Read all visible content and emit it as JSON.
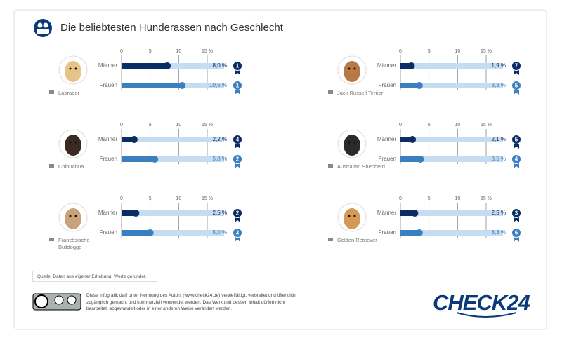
{
  "header": {
    "title": "Die beliebtesten Hunderassen nach Geschlecht"
  },
  "chart_data": [
    {
      "type": "bar",
      "title": "Labrador",
      "categories": [
        "Männer",
        "Frauen"
      ],
      "values": [
        8.0,
        10.6
      ],
      "value_labels": [
        "8,0 %",
        "10,6 %"
      ],
      "ranks": [
        1,
        1
      ],
      "colors": [
        "#0b2d66",
        "#3b7fc0"
      ],
      "xlim": [
        0,
        15
      ],
      "xticks": [
        0,
        5,
        10,
        {
          "value": 15,
          "label": "15 %"
        }
      ]
    },
    {
      "type": "bar",
      "title": "Jack Russell Terrier",
      "categories": [
        "Männer",
        "Frauen"
      ],
      "values": [
        1.9,
        3.3
      ],
      "value_labels": [
        "1,9 %",
        "3,3 %"
      ],
      "ranks": [
        7,
        5
      ],
      "colors": [
        "#0b2d66",
        "#3b7fc0"
      ],
      "xlim": [
        0,
        15
      ],
      "xticks": [
        0,
        5,
        10,
        {
          "value": 15,
          "label": "15 %"
        }
      ]
    },
    {
      "type": "bar",
      "title": "Chihuahua",
      "categories": [
        "Männer",
        "Frauen"
      ],
      "values": [
        2.2,
        5.8
      ],
      "value_labels": [
        "2,2 %",
        "5,8 %"
      ],
      "ranks": [
        4,
        2
      ],
      "colors": [
        "#0b2d66",
        "#3b7fc0"
      ],
      "xlim": [
        0,
        15
      ],
      "xticks": [
        0,
        5,
        10,
        {
          "value": 15,
          "label": "15 %"
        }
      ]
    },
    {
      "type": "bar",
      "title": "Australian Shepherd",
      "categories": [
        "Männer",
        "Frauen"
      ],
      "values": [
        2.1,
        3.5
      ],
      "value_labels": [
        "2,1 %",
        "3,5 %"
      ],
      "ranks": [
        5,
        4
      ],
      "colors": [
        "#0b2d66",
        "#3b7fc0"
      ],
      "xlim": [
        0,
        15
      ],
      "xticks": [
        0,
        5,
        10,
        {
          "value": 15,
          "label": "15 %"
        }
      ]
    },
    {
      "type": "bar",
      "title": "Französische Bulldogge",
      "categories": [
        "Männer",
        "Frauen"
      ],
      "values": [
        2.5,
        5.0
      ],
      "value_labels": [
        "2,5 %",
        "5,0 %"
      ],
      "ranks": [
        2,
        3
      ],
      "colors": [
        "#0b2d66",
        "#3b7fc0"
      ],
      "xlim": [
        0,
        15
      ],
      "xticks": [
        0,
        5,
        10,
        {
          "value": 15,
          "label": "15 %"
        }
      ]
    },
    {
      "type": "bar",
      "title": "Golden Retriever",
      "categories": [
        "Männer",
        "Frauen"
      ],
      "values": [
        2.5,
        3.3
      ],
      "value_labels": [
        "2,5 %",
        "3,3 %"
      ],
      "ranks": [
        3,
        6
      ],
      "colors": [
        "#0b2d66",
        "#3b7fc0"
      ],
      "xlim": [
        0,
        15
      ],
      "xticks": [
        0,
        5,
        10,
        {
          "value": 15,
          "label": "15 %"
        }
      ]
    }
  ],
  "footer": {
    "source": "Quelle: Daten aus eigener Erhebung. Werte gerundet.",
    "license": "Diese Infografik darf unter Nennung des Autors (www.check24.de) vervielfältigt, verbreitet und öffentlich zugänglich gemacht und kommerziell verwendet werden. Das Werk und dessen Inhalt dürfen nicht bearbeitet, abgewandelt oder in einer anderen Weise verändert werden.",
    "logo": "CHECK24"
  }
}
